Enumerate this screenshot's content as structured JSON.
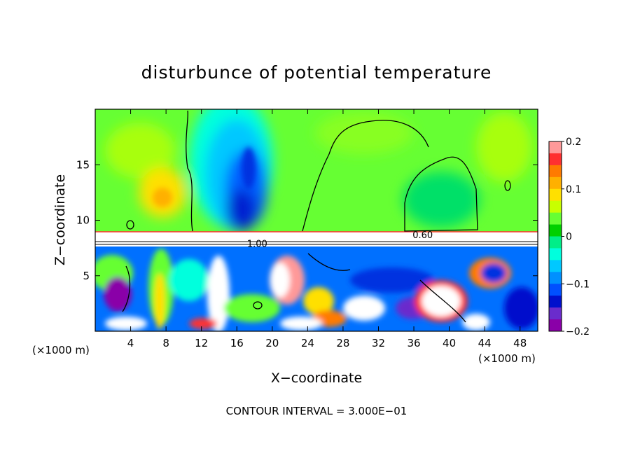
{
  "chart_data": {
    "type": "heatmap",
    "title": "disturbunce of potential temperature",
    "xlabel": "X−coordinate",
    "ylabel": "Z−coordinate",
    "x_unit_left": "(×1000 m)",
    "x_unit_right": "(×1000 m)",
    "footer": "CONTOUR INTERVAL = 3.000E−01",
    "xlim": [
      0,
      50
    ],
    "ylim": [
      0,
      20
    ],
    "xticks": [
      4,
      8,
      12,
      16,
      20,
      24,
      28,
      32,
      36,
      40,
      44,
      48
    ],
    "yticks": [
      5,
      10,
      15
    ],
    "contour_labels": [
      {
        "text": "0.60",
        "x": 37.0,
        "z": 8.4
      },
      {
        "text": "1.00",
        "x": 18.3,
        "z": 7.6
      }
    ],
    "colorbar": {
      "range": [
        -0.2,
        0.2
      ],
      "tick_labels": [
        "0.2",
        "0.1",
        "0",
        "−0.1",
        "−0.2"
      ],
      "colors": [
        "#ff9999",
        "#ff3030",
        "#ff7a00",
        "#ffb000",
        "#ffe000",
        "#c8ff00",
        "#66ff33",
        "#00d000",
        "#00ee88",
        "#00ffdd",
        "#00c8ff",
        "#0090ff",
        "#0050ff",
        "#0010cc",
        "#6a2ccc",
        "#8a00a8"
      ]
    },
    "features": [
      {
        "desc": "upper layer mostly near zero (green)",
        "x": [
          0,
          50
        ],
        "z": [
          9,
          20
        ],
        "value": 0.0
      },
      {
        "desc": "warm patch",
        "x": 7.5,
        "z": 12.5,
        "value": 0.09
      },
      {
        "desc": "cold plume",
        "x": 16.5,
        "z": 12.5,
        "value": -0.15
      },
      {
        "desc": "lower turbulent layer",
        "x": [
          0,
          50
        ],
        "z": [
          0,
          7.5
        ],
        "value": "mixed"
      }
    ]
  }
}
